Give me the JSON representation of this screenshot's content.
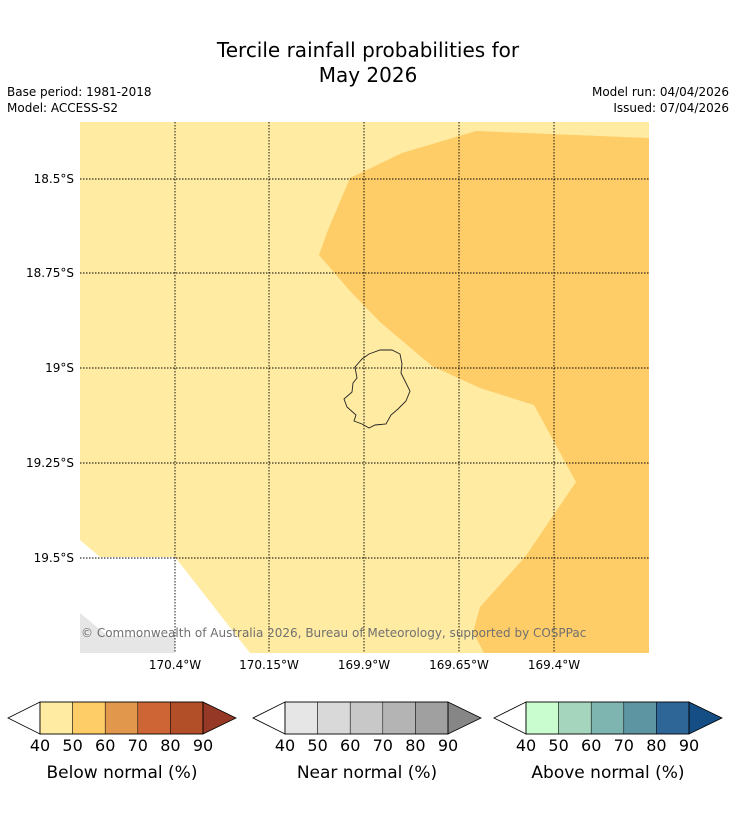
{
  "header": {
    "title_line1": "Tercile rainfall probabilities for",
    "title_line2": "May 2026",
    "base_period": "Base period: 1981-2018",
    "model": "Model: ACCESS-S2",
    "model_run": "Model run: 04/04/2026",
    "issued": "Issued: 07/04/2026"
  },
  "map": {
    "lat_ticks": [
      "18.5°S",
      "18.75°S",
      "19°S",
      "19.25°S",
      "19.5°S"
    ],
    "lon_ticks": [
      "170.4°W",
      "170.15°W",
      "169.9°W",
      "169.65°W",
      "169.4°W"
    ],
    "copyright": "© Commonwealth of Australia 2026, Bureau of Meteorology, supported by COSPPac",
    "colors": {
      "below_40_50": "#ffeba2",
      "below_50_60": "#fecd68",
      "no_data": "#e6e6e6"
    }
  },
  "legends": [
    {
      "label": "Below normal (%)",
      "ticks": [
        "40",
        "50",
        "60",
        "70",
        "80",
        "90"
      ],
      "colors": [
        "#ffeba2",
        "#fecd68",
        "#e1984d",
        "#cd6534",
        "#b24e28",
        "#953825"
      ]
    },
    {
      "label": "Near normal (%)",
      "ticks": [
        "40",
        "50",
        "60",
        "70",
        "80",
        "90"
      ],
      "colors": [
        "#e6e6e6",
        "#d9d9d9",
        "#c8c8c8",
        "#b4b4b4",
        "#a0a0a0",
        "#868686"
      ]
    },
    {
      "label": "Above normal (%)",
      "ticks": [
        "40",
        "50",
        "60",
        "70",
        "80",
        "90"
      ],
      "colors": [
        "#c9fcce",
        "#a5d6bd",
        "#7fb5b1",
        "#5d95a3",
        "#2f6698",
        "#154e85"
      ]
    }
  ]
}
